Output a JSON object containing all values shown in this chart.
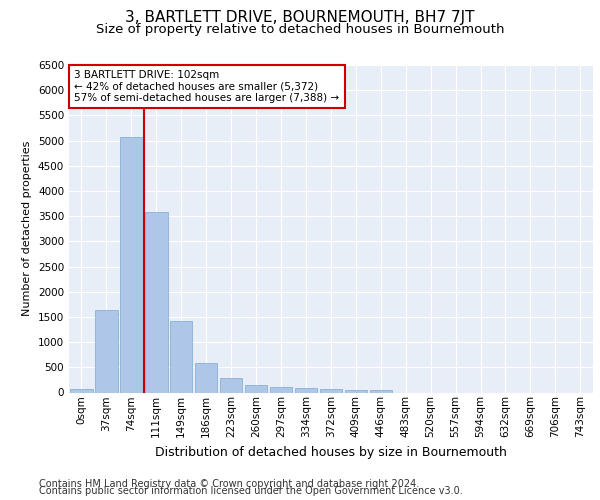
{
  "title": "3, BARTLETT DRIVE, BOURNEMOUTH, BH7 7JT",
  "subtitle": "Size of property relative to detached houses in Bournemouth",
  "xlabel": "Distribution of detached houses by size in Bournemouth",
  "ylabel": "Number of detached properties",
  "categories": [
    "0sqm",
    "37sqm",
    "74sqm",
    "111sqm",
    "149sqm",
    "186sqm",
    "223sqm",
    "260sqm",
    "297sqm",
    "334sqm",
    "372sqm",
    "409sqm",
    "446sqm",
    "483sqm",
    "520sqm",
    "557sqm",
    "594sqm",
    "632sqm",
    "669sqm",
    "706sqm",
    "743sqm"
  ],
  "values": [
    75,
    1630,
    5080,
    3590,
    1410,
    580,
    290,
    150,
    100,
    80,
    60,
    50,
    40,
    0,
    0,
    0,
    0,
    0,
    0,
    0,
    0
  ],
  "bar_color": "#aec6e8",
  "bar_edge_color": "#7ca8d0",
  "vline_x": 2.5,
  "vline_color": "#cc0000",
  "annotation_box_text": "3 BARTLETT DRIVE: 102sqm\n← 42% of detached houses are smaller (5,372)\n57% of semi-detached houses are larger (7,388) →",
  "annotation_box_color": "#cc0000",
  "annotation_box_facecolor": "white",
  "ylim": [
    0,
    6500
  ],
  "yticks": [
    0,
    500,
    1000,
    1500,
    2000,
    2500,
    3000,
    3500,
    4000,
    4500,
    5000,
    5500,
    6000,
    6500
  ],
  "background_color": "#e8eef7",
  "grid_color": "white",
  "footer_line1": "Contains HM Land Registry data © Crown copyright and database right 2024.",
  "footer_line2": "Contains public sector information licensed under the Open Government Licence v3.0.",
  "title_fontsize": 11,
  "subtitle_fontsize": 9.5,
  "xlabel_fontsize": 9,
  "ylabel_fontsize": 8,
  "tick_fontsize": 7.5,
  "footer_fontsize": 7,
  "annot_fontsize": 7.5
}
